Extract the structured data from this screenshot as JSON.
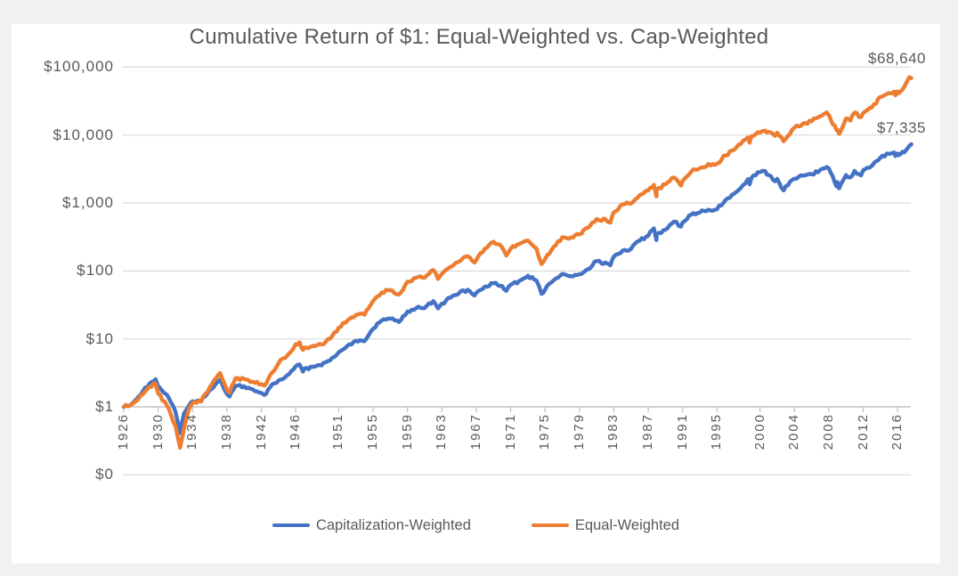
{
  "page": {
    "background_color": "#f1f1f1",
    "panel_color": "#ffffff",
    "text_color": "#595959",
    "gridline_color": "#d9d9d9",
    "axis_color": "#bfbfbf"
  },
  "chart_data": {
    "type": "line",
    "title": "Cumulative Return of $1: Equal-Weighted vs. Cap-Weighted",
    "grid": true,
    "y_axis": {
      "scale": "log",
      "min": 0.1,
      "max": 100000,
      "ticks": [
        {
          "label": "$100,000",
          "value": 100000
        },
        {
          "label": "$10,000",
          "value": 10000
        },
        {
          "label": "$1,000",
          "value": 1000
        },
        {
          "label": "$100",
          "value": 100
        },
        {
          "label": "$10",
          "value": 10
        },
        {
          "label": "$1",
          "value": 1
        },
        {
          "label": "$0",
          "value": 0.1
        }
      ]
    },
    "x_axis": {
      "range": [
        1926,
        2017.6
      ],
      "tick_labels": [
        "1926",
        "1930",
        "1934",
        "1938",
        "1942",
        "1946",
        "1951",
        "1955",
        "1959",
        "1963",
        "1967",
        "1971",
        "1975",
        "1979",
        "1983",
        "1987",
        "1991",
        "1995",
        "2000",
        "2004",
        "2008",
        "2012",
        "2016"
      ]
    },
    "legend": {
      "position": "bottom"
    },
    "series": [
      {
        "name": "Capitalization-Weighted",
        "color": "#4472C4",
        "end_label": "$7,335",
        "end_value": 7335,
        "points": [
          [
            1926,
            1.0
          ],
          [
            1927,
            1.12
          ],
          [
            1928,
            1.53
          ],
          [
            1929,
            2.2
          ],
          [
            1929.7,
            2.55
          ],
          [
            1930,
            2.01
          ],
          [
            1931,
            1.51
          ],
          [
            1932,
            0.86
          ],
          [
            1932.55,
            0.41
          ],
          [
            1933,
            0.79
          ],
          [
            1933.6,
            1.05
          ],
          [
            1934,
            1.21
          ],
          [
            1935,
            1.2
          ],
          [
            1936,
            1.77
          ],
          [
            1937,
            2.37
          ],
          [
            1937.2,
            2.5
          ],
          [
            1938,
            1.54
          ],
          [
            1938.3,
            1.42
          ],
          [
            1939,
            2.02
          ],
          [
            1940,
            2.01
          ],
          [
            1941,
            1.81
          ],
          [
            1942,
            1.6
          ],
          [
            1942.35,
            1.5
          ],
          [
            1943,
            1.93
          ],
          [
            1944,
            2.43
          ],
          [
            1945,
            2.91
          ],
          [
            1946,
            3.97
          ],
          [
            1946.45,
            4.2
          ],
          [
            1946.85,
            3.3
          ],
          [
            1947,
            3.65
          ],
          [
            1948,
            3.86
          ],
          [
            1949,
            4.07
          ],
          [
            1950,
            4.83
          ],
          [
            1951,
            6.36
          ],
          [
            1952,
            7.89
          ],
          [
            1953,
            9.34
          ],
          [
            1954,
            9.25
          ],
          [
            1955,
            14.1
          ],
          [
            1956,
            18.6
          ],
          [
            1957,
            19.8
          ],
          [
            1958,
            17.7
          ],
          [
            1959,
            25.3
          ],
          [
            1960,
            28.3
          ],
          [
            1961,
            28.5
          ],
          [
            1962,
            36.1
          ],
          [
            1962.55,
            28.0
          ],
          [
            1963,
            33.0
          ],
          [
            1964,
            40.5
          ],
          [
            1965,
            47.1
          ],
          [
            1966,
            53.0
          ],
          [
            1966.8,
            43.5
          ],
          [
            1967,
            47.7
          ],
          [
            1968,
            59.1
          ],
          [
            1969,
            65.6
          ],
          [
            1970,
            60.1
          ],
          [
            1970.5,
            51.0
          ],
          [
            1971,
            62.5
          ],
          [
            1972,
            71.4
          ],
          [
            1973,
            85.0
          ],
          [
            1974,
            72.4
          ],
          [
            1974.6,
            46.0
          ],
          [
            1975,
            53.2
          ],
          [
            1976,
            73.0
          ],
          [
            1977,
            90.4
          ],
          [
            1978,
            83.9
          ],
          [
            1979,
            89.5
          ],
          [
            1980,
            106
          ],
          [
            1981,
            140
          ],
          [
            1981.6,
            128
          ],
          [
            1982,
            133
          ],
          [
            1982.6,
            121
          ],
          [
            1983,
            162
          ],
          [
            1984,
            198
          ],
          [
            1985,
            211
          ],
          [
            1986,
            278
          ],
          [
            1987,
            330
          ],
          [
            1987.65,
            425
          ],
          [
            1987.95,
            285
          ],
          [
            1988,
            347
          ],
          [
            1989,
            405
          ],
          [
            1990,
            533
          ],
          [
            1990.8,
            450
          ],
          [
            1991,
            516
          ],
          [
            1992,
            673
          ],
          [
            1993,
            725
          ],
          [
            1994,
            798
          ],
          [
            1995,
            808
          ],
          [
            1996,
            1110
          ],
          [
            1997,
            1370
          ],
          [
            1998,
            1820
          ],
          [
            1998.6,
            2250
          ],
          [
            1998.8,
            1880
          ],
          [
            1999,
            2340
          ],
          [
            2000,
            2840
          ],
          [
            2000.6,
            2950
          ],
          [
            2001,
            2580
          ],
          [
            2001.75,
            2080
          ],
          [
            2002,
            2270
          ],
          [
            2002.75,
            1530
          ],
          [
            2003,
            1770
          ],
          [
            2004,
            2280
          ],
          [
            2005,
            2530
          ],
          [
            2006,
            2650
          ],
          [
            2007,
            3070
          ],
          [
            2007.75,
            3380
          ],
          [
            2008,
            3240
          ],
          [
            2008.9,
            1760
          ],
          [
            2009,
            2040
          ],
          [
            2009.2,
            1640
          ],
          [
            2010,
            2580
          ],
          [
            2010.5,
            2380
          ],
          [
            2011,
            2970
          ],
          [
            2011.75,
            2550
          ],
          [
            2012,
            3030
          ],
          [
            2013,
            3510
          ],
          [
            2014,
            4650
          ],
          [
            2015,
            5290
          ],
          [
            2015.6,
            5550
          ],
          [
            2015.75,
            4900
          ],
          [
            2016,
            5360
          ],
          [
            2016.12,
            5050
          ],
          [
            2017,
            6000
          ],
          [
            2017.35,
            6900
          ],
          [
            2017.6,
            7335
          ]
        ]
      },
      {
        "name": "Equal-Weighted",
        "color": "#ED7D31",
        "end_label": "$68,640",
        "end_value": 68640,
        "points": [
          [
            1926,
            1.0
          ],
          [
            1927,
            1.1
          ],
          [
            1928,
            1.5
          ],
          [
            1929,
            2.0
          ],
          [
            1929.7,
            2.2
          ],
          [
            1930,
            1.57
          ],
          [
            1931,
            1.06
          ],
          [
            1932,
            0.53
          ],
          [
            1932.55,
            0.25
          ],
          [
            1933,
            0.47
          ],
          [
            1933.6,
            0.95
          ],
          [
            1934,
            1.15
          ],
          [
            1935,
            1.2
          ],
          [
            1936,
            1.95
          ],
          [
            1937,
            2.96
          ],
          [
            1937.2,
            3.15
          ],
          [
            1938,
            1.77
          ],
          [
            1938.3,
            1.62
          ],
          [
            1939,
            2.63
          ],
          [
            1940,
            2.57
          ],
          [
            1941,
            2.35
          ],
          [
            1942,
            2.16
          ],
          [
            1942.35,
            2.05
          ],
          [
            1943,
            2.9
          ],
          [
            1944,
            4.37
          ],
          [
            1945,
            5.67
          ],
          [
            1946,
            8.34
          ],
          [
            1946.45,
            8.9
          ],
          [
            1946.85,
            6.9
          ],
          [
            1947,
            7.48
          ],
          [
            1948,
            7.91
          ],
          [
            1949,
            8.34
          ],
          [
            1950,
            10.1
          ],
          [
            1951,
            14.6
          ],
          [
            1952,
            18.5
          ],
          [
            1953,
            22.4
          ],
          [
            1954,
            22.7
          ],
          [
            1955,
            36.0
          ],
          [
            1956,
            48.3
          ],
          [
            1957,
            52.4
          ],
          [
            1958,
            45.0
          ],
          [
            1959,
            69.6
          ],
          [
            1960,
            79.3
          ],
          [
            1961,
            79.7
          ],
          [
            1962,
            103
          ],
          [
            1962.55,
            76
          ],
          [
            1963,
            90.6
          ],
          [
            1964,
            115
          ],
          [
            1965,
            137
          ],
          [
            1966,
            164
          ],
          [
            1966.8,
            133
          ],
          [
            1967,
            145
          ],
          [
            1968,
            213
          ],
          [
            1969,
            269
          ],
          [
            1970,
            222
          ],
          [
            1970.5,
            168
          ],
          [
            1971,
            212
          ],
          [
            1972,
            250
          ],
          [
            1973,
            280
          ],
          [
            1974,
            214
          ],
          [
            1974.6,
            126
          ],
          [
            1975,
            149
          ],
          [
            1976,
            226
          ],
          [
            1977,
            312
          ],
          [
            1978,
            311
          ],
          [
            1979,
            344
          ],
          [
            1980,
            434
          ],
          [
            1981,
            582
          ],
          [
            1981.6,
            545
          ],
          [
            1982,
            580
          ],
          [
            1982.6,
            515
          ],
          [
            1983,
            729
          ],
          [
            1984,
            953
          ],
          [
            1985,
            981
          ],
          [
            1986,
            1310
          ],
          [
            1987,
            1530
          ],
          [
            1987.65,
            1850
          ],
          [
            1987.95,
            1250
          ],
          [
            1988,
            1580
          ],
          [
            1989,
            1880
          ],
          [
            1990,
            2370
          ],
          [
            1990.8,
            1800
          ],
          [
            1991,
            2120
          ],
          [
            1992,
            2900
          ],
          [
            1993,
            3260
          ],
          [
            1994,
            3750
          ],
          [
            1995,
            3800
          ],
          [
            1996,
            5060
          ],
          [
            1997,
            6080
          ],
          [
            1998,
            8110
          ],
          [
            1998.6,
            9200
          ],
          [
            1998.8,
            7700
          ],
          [
            1999,
            9610
          ],
          [
            2000,
            10900
          ],
          [
            2000.6,
            11600
          ],
          [
            2001,
            11100
          ],
          [
            2001.75,
            9700
          ],
          [
            2002,
            10800
          ],
          [
            2002.75,
            8100
          ],
          [
            2003,
            8850
          ],
          [
            2004,
            12800
          ],
          [
            2005,
            14800
          ],
          [
            2006,
            15900
          ],
          [
            2007,
            18900
          ],
          [
            2007.75,
            21600
          ],
          [
            2008,
            19700
          ],
          [
            2008.9,
            11800
          ],
          [
            2009,
            12000
          ],
          [
            2009.2,
            10400
          ],
          [
            2010,
            17500
          ],
          [
            2010.5,
            16300
          ],
          [
            2011,
            21400
          ],
          [
            2011.75,
            18300
          ],
          [
            2012,
            21000
          ],
          [
            2013,
            25500
          ],
          [
            2014,
            36300
          ],
          [
            2015,
            41500
          ],
          [
            2015.6,
            43500
          ],
          [
            2015.75,
            38400
          ],
          [
            2016,
            44000
          ],
          [
            2016.12,
            41000
          ],
          [
            2017,
            58000
          ],
          [
            2017.35,
            71000
          ],
          [
            2017.6,
            68640
          ]
        ]
      }
    ]
  }
}
